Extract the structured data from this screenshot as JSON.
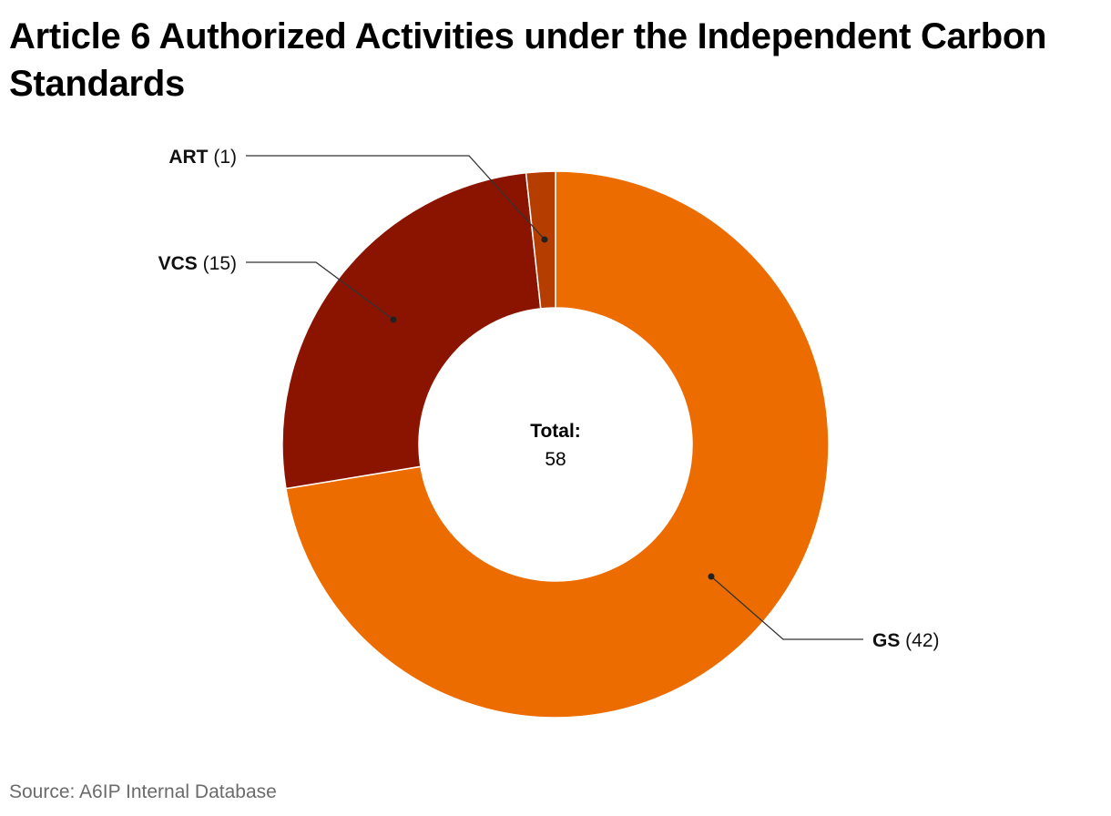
{
  "chart_data": {
    "type": "donut",
    "title": "Article 6 Authorized Activities under the Independent Carbon Standards",
    "center_label": "Total:",
    "center_value": "58",
    "slices": [
      {
        "name": "GS",
        "value": 42,
        "display": "(42)",
        "color": "#ec6c00"
      },
      {
        "name": "VCS",
        "value": 15,
        "display": "(15)",
        "color": "#8b1400"
      },
      {
        "name": "ART",
        "value": 1,
        "display": "(1)",
        "color": "#b53d00"
      }
    ]
  },
  "source": "Source: A6IP Internal Database"
}
